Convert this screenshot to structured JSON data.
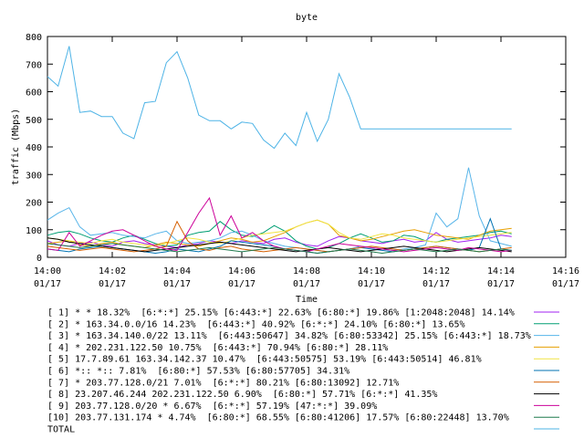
{
  "chart_data": {
    "type": "line",
    "title": "byte",
    "xlabel": "Time",
    "ylabel": "traffic (Mbps)",
    "ylim": [
      0,
      800
    ],
    "yticks": [
      "0",
      "100",
      "200",
      "300",
      "400",
      "500",
      "600",
      "700",
      "800"
    ],
    "xlim": [
      "14:00",
      "14:16"
    ],
    "xticks": [
      {
        "time": "14:00",
        "date": "01/17"
      },
      {
        "time": "14:02",
        "date": "01/17"
      },
      {
        "time": "14:04",
        "date": "01/17"
      },
      {
        "time": "14:06",
        "date": "01/17"
      },
      {
        "time": "14:08",
        "date": "01/17"
      },
      {
        "time": "14:10",
        "date": "01/17"
      },
      {
        "time": "14:12",
        "date": "01/17"
      },
      {
        "time": "14:14",
        "date": "01/17"
      },
      {
        "time": "14:16",
        "date": "01/17"
      }
    ],
    "grid": false,
    "legend_position": "bottom",
    "series": [
      {
        "name": "[ 1] * * 18.32%  [6:*:*] 25.15% [6:443:*] 22.63% [6:80:*] 19.86% [1:2048:2048] 14.14%",
        "color": "#a020f0",
        "x": [
          0,
          0.33,
          0.67,
          1,
          1.33,
          1.67,
          2,
          2.33,
          2.67,
          3,
          3.33,
          3.67,
          4,
          4.33,
          4.67,
          5,
          5.33,
          5.67,
          6,
          6.33,
          6.67,
          7,
          7.33,
          7.67,
          8,
          8.33,
          8.67,
          9,
          9.33,
          9.67,
          10,
          10.33,
          10.67,
          11,
          11.33,
          11.67,
          12,
          12.33,
          12.67,
          13,
          13.33,
          13.67,
          14,
          14.33
        ],
        "y": [
          60,
          45,
          40,
          50,
          55,
          45,
          40,
          55,
          60,
          50,
          45,
          40,
          35,
          45,
          50,
          60,
          55,
          50,
          60,
          55,
          50,
          65,
          70,
          55,
          45,
          40,
          60,
          75,
          70,
          60,
          55,
          50,
          60,
          65,
          55,
          60,
          90,
          65,
          55,
          60,
          65,
          70,
          80,
          75
        ]
      },
      {
        "name": "[ 2] * 163.34.0.0/16 14.23%  [6:443:*] 40.92% [6:*:*] 24.10% [6:80:*] 13.65%",
        "color": "#009e73",
        "x": [
          0,
          0.33,
          0.67,
          1,
          1.33,
          1.67,
          2,
          2.33,
          2.67,
          3,
          3.33,
          3.67,
          4,
          4.33,
          4.67,
          5,
          5.33,
          5.67,
          6,
          6.33,
          6.67,
          7,
          7.33,
          7.67,
          8,
          8.33,
          8.67,
          9,
          9.33,
          9.67,
          10,
          10.33,
          10.67,
          11,
          11.33,
          11.67,
          12,
          12.33,
          12.67,
          13,
          13.33,
          13.67,
          14,
          14.33
        ],
        "y": [
          80,
          90,
          95,
          85,
          70,
          60,
          55,
          70,
          80,
          65,
          50,
          40,
          45,
          80,
          90,
          95,
          130,
          100,
          80,
          75,
          90,
          115,
          95,
          60,
          40,
          30,
          35,
          50,
          70,
          85,
          70,
          55,
          60,
          80,
          75,
          60,
          55,
          65,
          70,
          75,
          80,
          90,
          95,
          85
        ]
      },
      {
        "name": "[ 3] * 163.34.140.0/22 13.11%  [6:443:50647] 34.82% [6:80:53342] 25.15% [6:443:*] 18.73%",
        "color": "#56b4e9",
        "x": [
          0,
          0.33,
          0.67,
          1,
          1.33,
          1.67,
          2,
          2.33,
          2.67,
          3,
          3.33,
          3.67,
          4,
          4.33,
          4.67,
          5,
          5.33,
          5.67,
          6,
          6.33,
          6.67,
          7,
          7.33,
          7.67,
          8,
          8.33,
          8.67,
          9,
          9.33,
          9.67,
          10,
          10.33,
          10.67,
          11,
          11.33,
          11.67,
          12,
          12.33,
          12.67,
          13,
          13.33,
          13.67,
          14,
          14.33
        ],
        "y": [
          135,
          160,
          180,
          110,
          80,
          85,
          90,
          80,
          75,
          70,
          85,
          95,
          60,
          50,
          55,
          60,
          70,
          90,
          95,
          80,
          60,
          50,
          40,
          35,
          30,
          25,
          20,
          25,
          30,
          40,
          35,
          30,
          25,
          30,
          35,
          45,
          160,
          110,
          140,
          325,
          150,
          60,
          50,
          40
        ]
      },
      {
        "name": "[ 4] * 202.231.122.50 10.75%  [6:443:*] 70.94% [6:80:*] 28.11%",
        "color": "#e69f00",
        "x": [
          0,
          0.33,
          0.67,
          1,
          1.33,
          1.67,
          2,
          2.33,
          2.67,
          3,
          3.33,
          3.67,
          4,
          4.33,
          4.67,
          5,
          5.33,
          5.67,
          6,
          6.33,
          6.67,
          7,
          7.33,
          7.67,
          8,
          8.33,
          8.67,
          9,
          9.33,
          9.67,
          10,
          10.33,
          10.67,
          11,
          11.33,
          11.67,
          12,
          12.33,
          12.67,
          13,
          13.33,
          13.67,
          14,
          14.33
        ],
        "y": [
          50,
          55,
          60,
          45,
          40,
          50,
          55,
          45,
          40,
          35,
          45,
          55,
          50,
          45,
          40,
          50,
          60,
          70,
          65,
          55,
          60,
          75,
          90,
          110,
          125,
          135,
          120,
          80,
          70,
          60,
          65,
          75,
          85,
          95,
          100,
          90,
          80,
          75,
          70,
          65,
          80,
          95,
          100,
          105
        ]
      },
      {
        "name": "[ 5] 17.7.89.61 163.34.142.37 10.47%  [6:443:50575] 53.19% [6:443:50514] 46.81%",
        "color": "#f0e442",
        "x": [
          0,
          0.33,
          0.67,
          1,
          1.33,
          1.67,
          2,
          2.33,
          2.67,
          3,
          3.33,
          3.67,
          4,
          4.33,
          4.67,
          5,
          5.33,
          5.67,
          6,
          6.33,
          6.67,
          7,
          7.33,
          7.67,
          8,
          8.33,
          8.67,
          9,
          9.33,
          9.67,
          10,
          10.33,
          10.67,
          11,
          11.33,
          11.67,
          12,
          12.33,
          12.67,
          13,
          13.33,
          13.67,
          14,
          14.33
        ],
        "y": [
          70,
          65,
          60,
          55,
          50,
          60,
          65,
          55,
          50,
          45,
          40,
          50,
          60,
          70,
          65,
          55,
          50,
          60,
          70,
          80,
          85,
          90,
          95,
          110,
          125,
          135,
          120,
          90,
          70,
          65,
          75,
          85,
          80,
          70,
          65,
          60,
          55,
          60,
          65,
          70,
          75,
          80,
          85,
          90
        ]
      },
      {
        "name": "[ 6] *:: *:: 7.81%  [6:80:*] 57.53% [6:80:57705] 34.31%",
        "color": "#0072b2",
        "x": [
          0,
          0.33,
          0.67,
          1,
          1.33,
          1.67,
          2,
          2.33,
          2.67,
          3,
          3.33,
          3.67,
          4,
          4.33,
          4.67,
          5,
          5.33,
          5.67,
          6,
          6.33,
          6.67,
          7,
          7.33,
          7.67,
          8,
          8.33,
          8.67,
          9,
          9.33,
          9.67,
          10,
          10.33,
          10.67,
          11,
          11.33,
          11.67,
          12,
          12.33,
          12.67,
          13,
          13.33,
          13.67,
          14,
          14.33
        ],
        "y": [
          30,
          25,
          20,
          30,
          35,
          40,
          35,
          30,
          25,
          20,
          15,
          20,
          30,
          25,
          20,
          30,
          40,
          60,
          55,
          50,
          45,
          40,
          30,
          25,
          20,
          15,
          20,
          25,
          30,
          35,
          30,
          25,
          20,
          25,
          30,
          35,
          40,
          35,
          30,
          25,
          35,
          140,
          30,
          25
        ]
      },
      {
        "name": "[ 7] * 203.77.128.0/21 7.01%  [6:*:*] 80.21% [6:80:13092] 12.71%",
        "color": "#d55e00",
        "x": [
          0,
          0.33,
          0.67,
          1,
          1.33,
          1.67,
          2,
          2.33,
          2.67,
          3,
          3.33,
          3.67,
          4,
          4.33,
          4.67,
          5,
          5.33,
          5.67,
          6,
          6.33,
          6.67,
          7,
          7.33,
          7.67,
          8,
          8.33,
          8.67,
          9,
          9.33,
          9.67,
          10,
          10.33,
          10.67,
          11,
          11.33,
          11.67,
          12,
          12.33,
          12.67,
          13,
          13.33,
          13.67,
          14,
          14.33
        ],
        "y": [
          40,
          35,
          30,
          25,
          30,
          35,
          30,
          25,
          20,
          25,
          30,
          40,
          130,
          60,
          30,
          25,
          35,
          40,
          30,
          25,
          20,
          25,
          30,
          35,
          30,
          25,
          20,
          25,
          30,
          35,
          40,
          35,
          30,
          25,
          30,
          35,
          40,
          35,
          30,
          25,
          20,
          25,
          30,
          35
        ]
      },
      {
        "name": "[ 8] 23.207.46.244 202.231.122.50 6.90%  [6:80:*] 57.71% [6:*:*] 41.35%",
        "color": "#000000",
        "x": [
          0,
          0.33,
          0.67,
          1,
          1.33,
          1.67,
          2,
          2.33,
          2.67,
          3,
          3.33,
          3.67,
          4,
          4.33,
          4.67,
          5,
          5.33,
          5.67,
          6,
          6.33,
          6.67,
          7,
          7.33,
          7.67,
          8,
          8.33,
          8.67,
          9,
          9.33,
          9.67,
          10,
          10.33,
          10.67,
          11,
          11.33,
          11.67,
          12,
          12.33,
          12.67,
          13,
          13.33,
          13.67,
          14,
          14.33
        ],
        "y": [
          70,
          65,
          55,
          50,
          45,
          40,
          35,
          30,
          25,
          20,
          25,
          30,
          35,
          40,
          45,
          50,
          55,
          50,
          45,
          40,
          35,
          30,
          25,
          20,
          25,
          30,
          35,
          30,
          25,
          20,
          25,
          30,
          35,
          40,
          35,
          30,
          25,
          20,
          25,
          30,
          35,
          30,
          25,
          20
        ]
      },
      {
        "name": "[ 9] 203.77.128.0/20 * 6.67%  [6:*:*] 57.19% [47:*:*] 39.09%",
        "color": "#cc0099",
        "x": [
          0,
          0.33,
          0.67,
          1,
          1.33,
          1.67,
          2,
          2.33,
          2.67,
          3,
          3.33,
          3.67,
          4,
          4.33,
          4.67,
          5,
          5.33,
          5.67,
          6,
          6.33,
          6.67,
          7,
          7.33,
          7.67,
          8,
          8.33,
          8.67,
          9,
          9.33,
          9.67,
          10,
          10.33,
          10.67,
          11,
          11.33,
          11.67,
          12,
          12.33,
          12.67,
          13,
          13.33,
          13.67,
          14,
          14.33
        ],
        "y": [
          30,
          25,
          90,
          40,
          60,
          80,
          95,
          100,
          80,
          60,
          40,
          30,
          25,
          90,
          160,
          215,
          80,
          150,
          70,
          90,
          60,
          40,
          30,
          25,
          20,
          30,
          40,
          50,
          45,
          40,
          35,
          30,
          25,
          20,
          25,
          30,
          35,
          30,
          25,
          35,
          30,
          25,
          20,
          25
        ]
      },
      {
        "name": "[10] 203.77.131.174 * 4.74%  [6:80:*] 68.55% [6:80:41206] 17.57% [6:80:22448] 13.70%",
        "color": "#1f7a4d",
        "x": [
          0,
          0.33,
          0.67,
          1,
          1.33,
          1.67,
          2,
          2.33,
          2.67,
          3,
          3.33,
          3.67,
          4,
          4.33,
          4.67,
          5,
          5.33,
          5.67,
          6,
          6.33,
          6.67,
          7,
          7.33,
          7.67,
          8,
          8.33,
          8.67,
          9,
          9.33,
          9.67,
          10,
          10.33,
          10.67,
          11,
          11.33,
          11.67,
          12,
          12.33,
          12.67,
          13,
          13.33,
          13.67,
          14,
          14.33
        ],
        "y": [
          50,
          45,
          40,
          35,
          40,
          45,
          50,
          45,
          40,
          35,
          30,
          25,
          20,
          25,
          30,
          35,
          30,
          25,
          20,
          25,
          30,
          35,
          30,
          25,
          20,
          15,
          20,
          25,
          30,
          25,
          20,
          15,
          20,
          25,
          30,
          25,
          20,
          25,
          30,
          25,
          20,
          25,
          30,
          25
        ]
      },
      {
        "name": "TOTAL",
        "color": "#4db3e6",
        "x": [
          0,
          0.33,
          0.67,
          1,
          1.33,
          1.67,
          2,
          2.33,
          2.67,
          3,
          3.33,
          3.67,
          4,
          4.33,
          4.67,
          5,
          5.33,
          5.67,
          6,
          6.33,
          6.67,
          7,
          7.33,
          7.67,
          8,
          8.33,
          8.67,
          9,
          9.33,
          9.67,
          10,
          10.33,
          10.67,
          11,
          11.33,
          11.67,
          12,
          12.33,
          12.67,
          13,
          13.33,
          13.67,
          14,
          14.33
        ],
        "y": [
          655,
          620,
          765,
          525,
          530,
          510,
          510,
          450,
          430,
          560,
          565,
          705,
          745,
          650,
          515,
          495,
          495,
          465,
          490,
          485,
          425,
          395,
          450,
          405,
          525,
          420,
          500,
          665,
          580,
          465,
          465,
          465,
          465,
          465,
          465,
          465,
          465,
          465,
          465,
          465,
          465,
          465,
          465,
          465
        ]
      }
    ]
  }
}
